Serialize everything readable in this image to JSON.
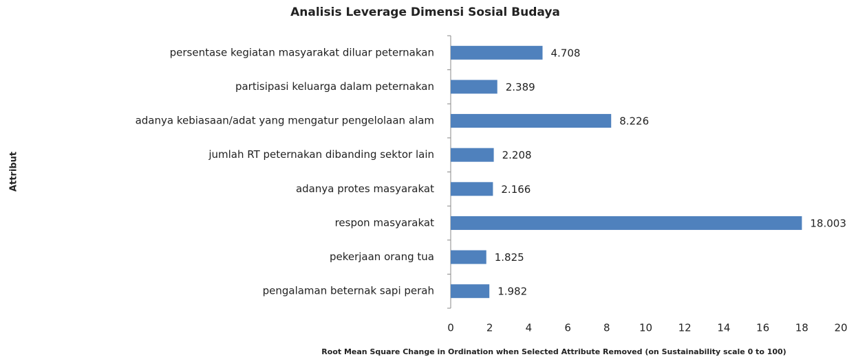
{
  "chart_data": {
    "type": "hbar",
    "title": "Analisis Leverage Dimensi Sosial Budaya",
    "x_label": "Root Mean Square Change in Ordination when Selected Attribute Removed (on Sustainability scale 0 to 100)",
    "y_label": "Attribut",
    "categories": [
      "persentase kegiatan masyarakat diluar peternakan",
      "partisipasi keluarga dalam peternakan",
      "adanya kebiasaan/adat yang mengatur pengelolaan alam",
      "jumlah RT peternakan dibanding sektor lain",
      "adanya protes masyarakat",
      "respon masyarakat",
      "pekerjaan orang tua",
      "pengalaman beternak sapi perah"
    ],
    "values": [
      4.708,
      2.389,
      8.226,
      2.208,
      2.166,
      18.003,
      1.825,
      1.982
    ],
    "color": "#4f81bd",
    "xlim": [
      0,
      20
    ],
    "xticks": [
      0,
      2,
      4,
      6,
      8,
      10,
      12,
      14,
      16,
      18,
      20
    ]
  }
}
